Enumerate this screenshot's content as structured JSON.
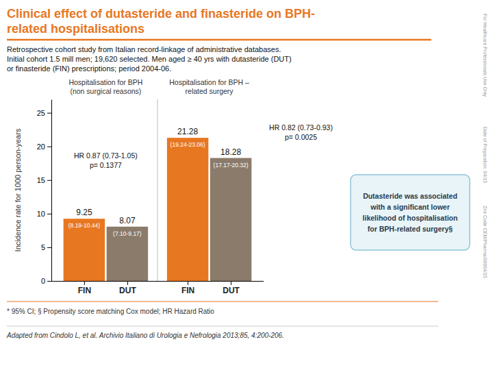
{
  "chart_data": {
    "type": "bar",
    "title": "Clinical effect of dutasteride and finasteride on BPH-\nrelated hospitalisations",
    "title_color": "#E87722",
    "rule_color": "#E87722",
    "subtitle": "Retrospective cohort study from Italian record-linkage of administrative databases.\nInitial cohort 1.5 mill men; 19,620 selected. Men aged ≥ 40 yrs with dutasteride (DUT)\nor finasteride (FIN) prescriptions; period 2004-06.",
    "categories": [
      "FIN",
      "DUT",
      "FIN",
      "DUT"
    ],
    "values": [
      9.25,
      8.07,
      21.28,
      18.28
    ],
    "colors": [
      "#E87722",
      "#8B7B6B",
      "#E87722",
      "#8B7B6B"
    ],
    "ci_labels": [
      "(8.19-10.44)",
      "(7.10-9.17)",
      "(19.24-23.06)",
      "(17.17-20.32)"
    ],
    "group_labels": [
      "Hospitalisation for BPH\n(non surgical reasons)",
      "Hospitalisation for BPH –\nrelated surgery"
    ],
    "annotations": [
      "HR 0.87 (0.73-1.05)\np= 0.1377",
      "HR 0.82 (0.73-0.93)\np= 0.0025"
    ],
    "y_label": "Incidence rate for 1000 person-years",
    "ylim": [
      0,
      27
    ],
    "yticks": [
      0,
      5,
      10,
      15,
      20,
      25
    ],
    "grid": false,
    "data_labels": true,
    "callout": {
      "text": "Dutasteride was associated\nwith a significant lower\nlikelihood of hospitalisation\nfor BPH-related surgery§",
      "color": "#E8F4F8",
      "border_color": "#90C4D8"
    },
    "footnotes": [
      "* 95% CI; § Propensity score matching Cox model; HR Hazard Ratio",
      "Adapted from Cindolo L, et al. Archivio Italiano di Urologia e Nefrologia 2013;85, 4:200-206."
    ],
    "side_notes": [
      "For Healthcare Professionals Use Only",
      "Date of Preparation: 04/15",
      "Zire Code CEM/Pharma/00004/15"
    ]
  }
}
